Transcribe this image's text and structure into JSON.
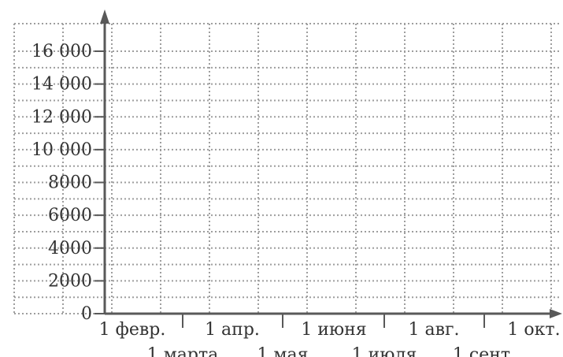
{
  "chart_data": {
    "type": "line",
    "title": "",
    "xlabel": "",
    "ylabel": "",
    "ylim": [
      0,
      17000
    ],
    "y_ticks": [
      {
        "value": 0,
        "label": "0"
      },
      {
        "value": 2000,
        "label": "2000"
      },
      {
        "value": 4000,
        "label": "4000"
      },
      {
        "value": 6000,
        "label": "6000"
      },
      {
        "value": 8000,
        "label": "8000"
      },
      {
        "value": 10000,
        "label": "10 000"
      },
      {
        "value": 12000,
        "label": "12 000"
      },
      {
        "value": 14000,
        "label": "14 000"
      },
      {
        "value": 16000,
        "label": "16 000"
      }
    ],
    "x_ticks_upper": [
      "1 февр.",
      "1 апр.",
      "1 июня",
      "1 авг.",
      "1 окт."
    ],
    "x_ticks_lower": [
      "1 марта",
      "1 мая",
      "1 июля",
      "1 сент."
    ],
    "grid": true,
    "grid_style": "dotted",
    "colors": {
      "axis": "#595959",
      "grid": "#9e9e9e",
      "text": "#333333"
    },
    "series": []
  }
}
